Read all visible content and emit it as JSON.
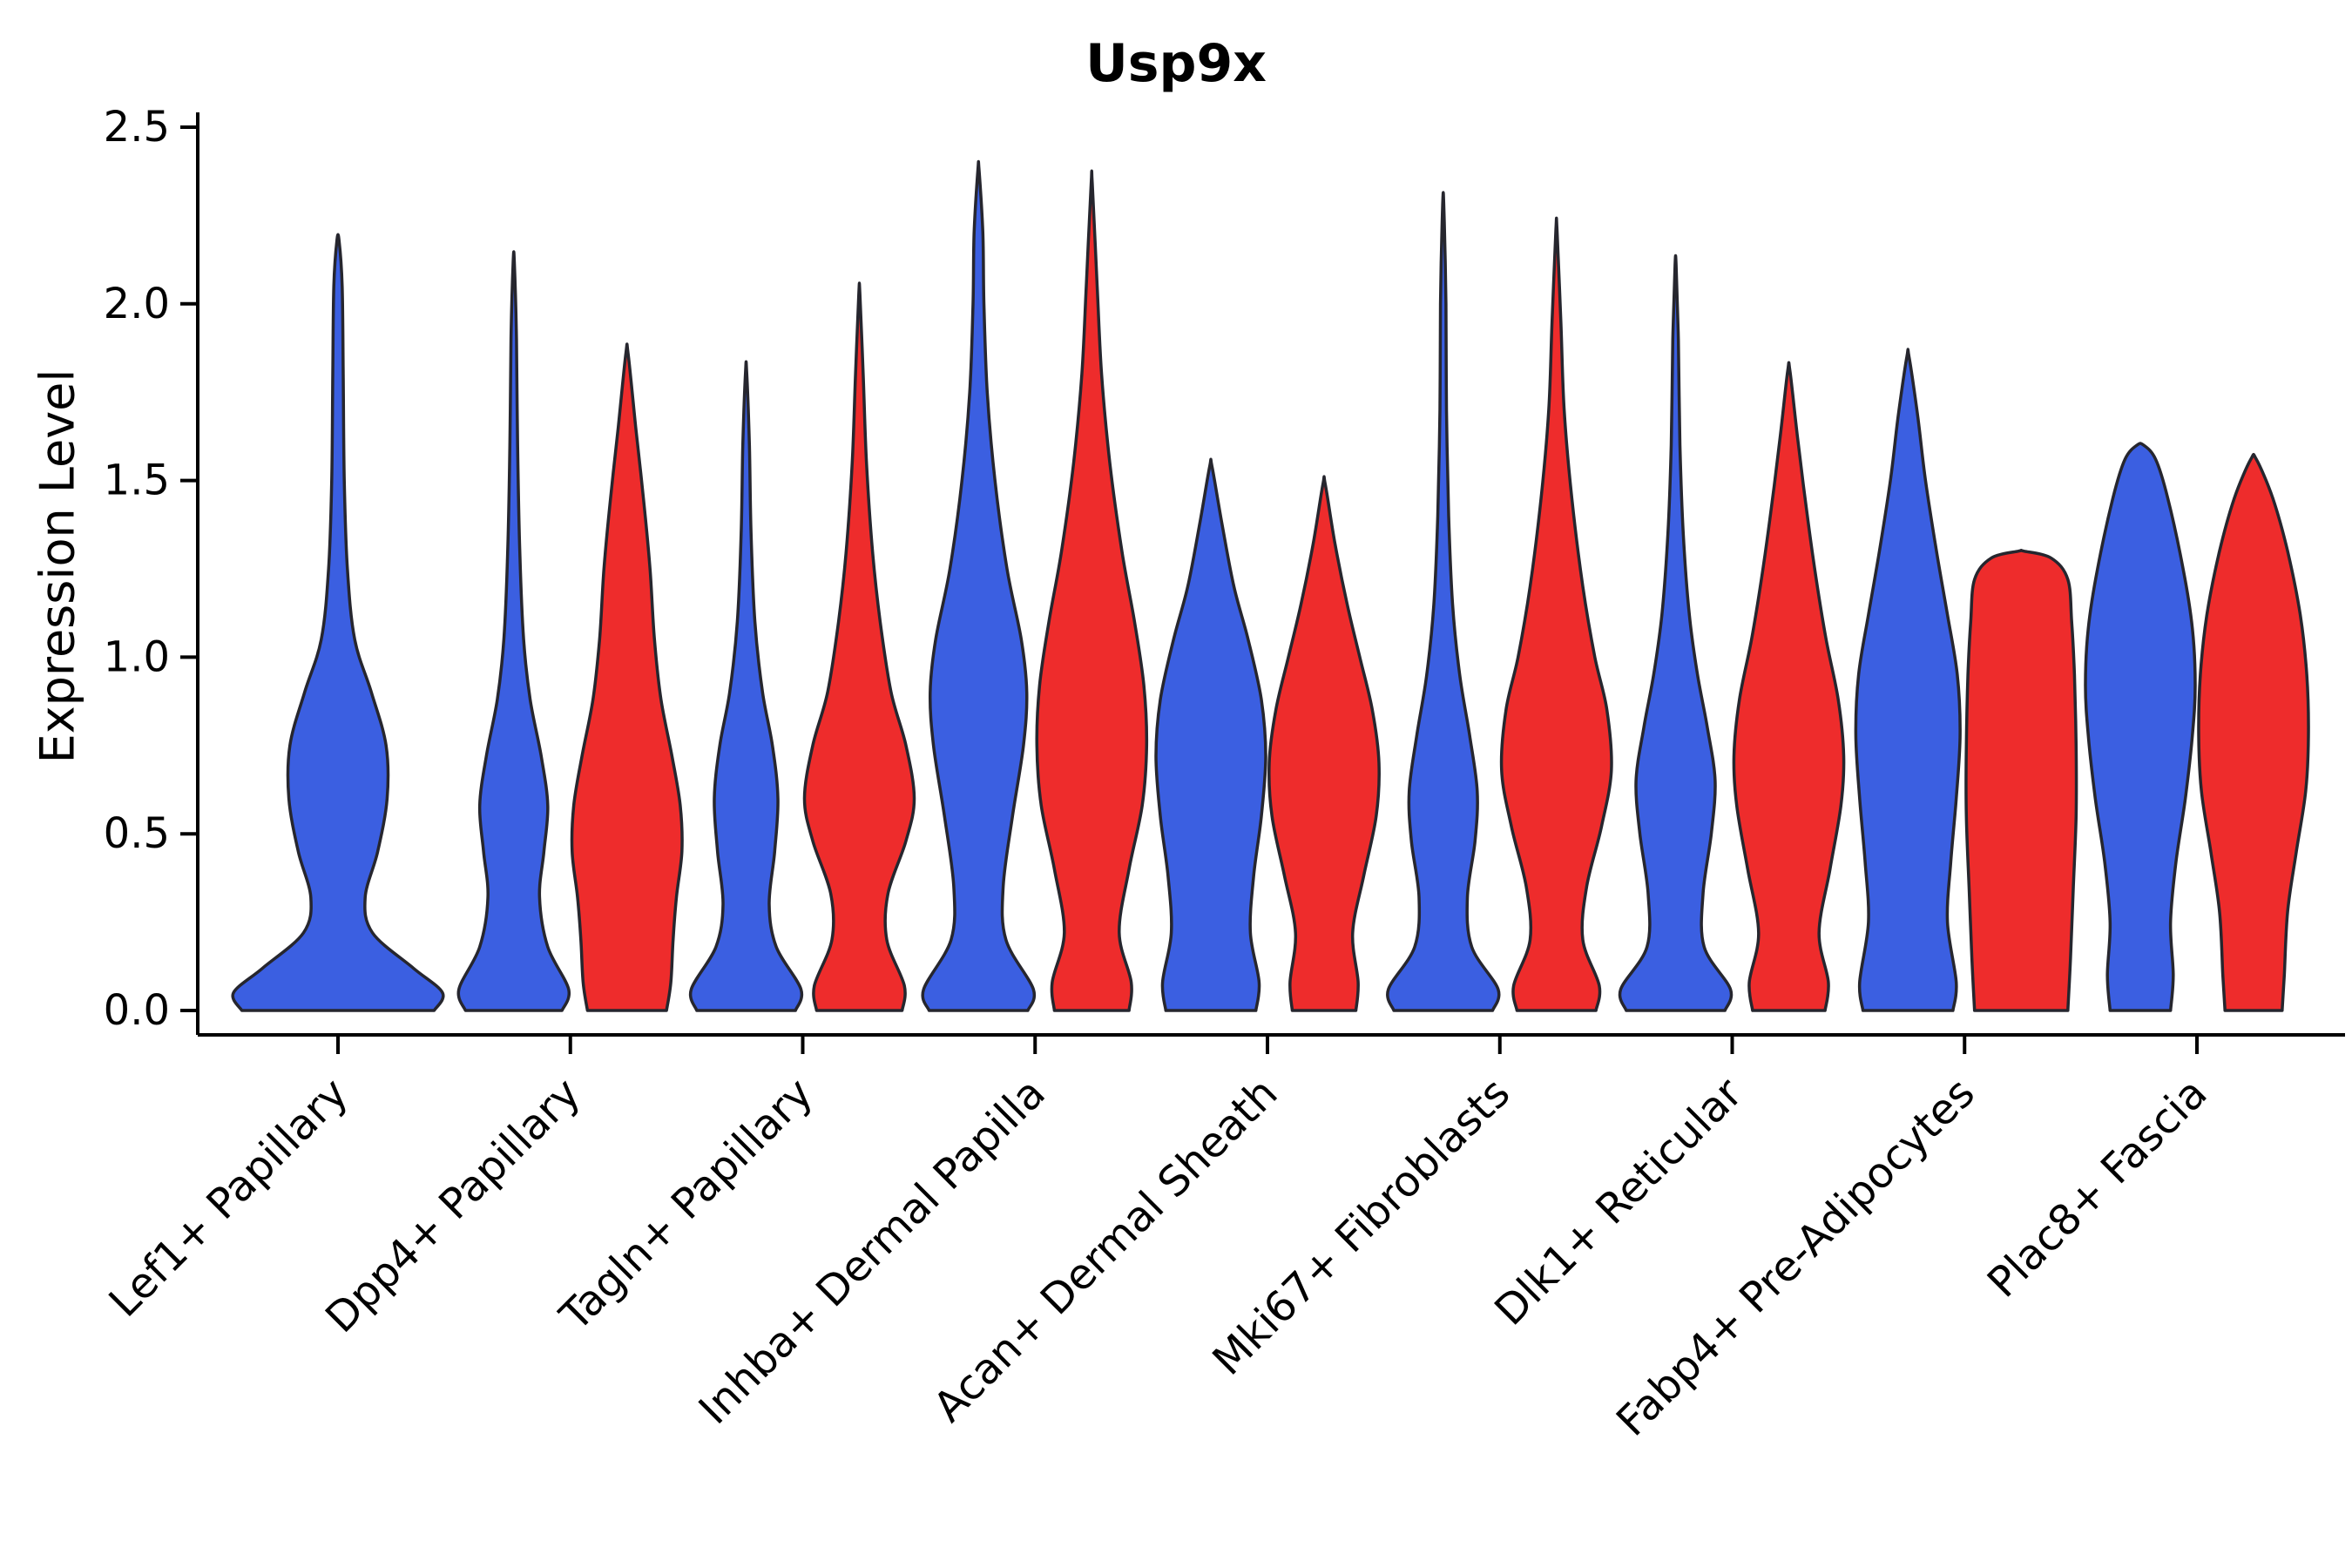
{
  "chart_data": {
    "type": "violin",
    "title": "Usp9x",
    "ylabel": "Expression Level",
    "xlabel": "",
    "ylim": [
      0,
      2.5
    ],
    "yticks": [
      0.0,
      0.5,
      1.0,
      1.5,
      2.0,
      2.5
    ],
    "ytick_labels": [
      "0.0",
      "0.5",
      "1.0",
      "1.5",
      "2.0",
      "2.5"
    ],
    "grid": false,
    "legend": "none",
    "colors": {
      "blue": "#3B5FE1",
      "red": "#EE2C2C",
      "edge": "#26262E",
      "axis": "#000000"
    },
    "categories": [
      "Lef1+ Papillary",
      "Dpp4+ Papillary",
      "Tagln+ Papillary",
      "Inhba+ Dermal Papilla",
      "Acan+ Dermal Sheath",
      "Mki67+ Fibroblasts",
      "Dlk1+ Reticular",
      "Fabp4+ Pre-Adipocytes",
      "Plac8+ Fascia"
    ],
    "violins": [
      {
        "category": "Lef1+ Papillary",
        "parts": [
          {
            "group": "blue",
            "max": 2.18,
            "profile": [
              [
                0,
                0.92
              ],
              [
                0.05,
                1.0
              ],
              [
                0.12,
                0.72
              ],
              [
                0.22,
                0.33
              ],
              [
                0.32,
                0.26
              ],
              [
                0.45,
                0.38
              ],
              [
                0.6,
                0.47
              ],
              [
                0.75,
                0.46
              ],
              [
                0.9,
                0.32
              ],
              [
                1.05,
                0.16
              ],
              [
                1.25,
                0.09
              ],
              [
                1.5,
                0.06
              ],
              [
                1.8,
                0.05
              ],
              [
                2.05,
                0.04
              ],
              [
                2.18,
                0.01
              ]
            ]
          }
        ]
      },
      {
        "category": "Dpp4+ Papillary",
        "parts": [
          {
            "group": "blue",
            "max": 2.12,
            "profile": [
              [
                0,
                0.88
              ],
              [
                0.06,
                1.0
              ],
              [
                0.18,
                0.62
              ],
              [
                0.32,
                0.47
              ],
              [
                0.45,
                0.55
              ],
              [
                0.58,
                0.62
              ],
              [
                0.72,
                0.5
              ],
              [
                0.88,
                0.3
              ],
              [
                1.05,
                0.18
              ],
              [
                1.3,
                0.11
              ],
              [
                1.6,
                0.07
              ],
              [
                1.9,
                0.05
              ],
              [
                2.12,
                0.01
              ]
            ]
          },
          {
            "group": "red",
            "max": 1.86,
            "profile": [
              [
                0,
                0.72
              ],
              [
                0.08,
                0.8
              ],
              [
                0.2,
                0.84
              ],
              [
                0.32,
                0.9
              ],
              [
                0.45,
                1.0
              ],
              [
                0.58,
                0.97
              ],
              [
                0.72,
                0.82
              ],
              [
                0.88,
                0.62
              ],
              [
                1.05,
                0.5
              ],
              [
                1.25,
                0.42
              ],
              [
                1.45,
                0.3
              ],
              [
                1.65,
                0.16
              ],
              [
                1.86,
                0.02
              ]
            ]
          }
        ]
      },
      {
        "category": "Tagln+ Papillary",
        "parts": [
          {
            "group": "blue",
            "max": 1.81,
            "profile": [
              [
                0,
                0.9
              ],
              [
                0.06,
                1.0
              ],
              [
                0.18,
                0.55
              ],
              [
                0.3,
                0.42
              ],
              [
                0.45,
                0.52
              ],
              [
                0.6,
                0.58
              ],
              [
                0.75,
                0.48
              ],
              [
                0.9,
                0.3
              ],
              [
                1.1,
                0.16
              ],
              [
                1.35,
                0.09
              ],
              [
                1.6,
                0.06
              ],
              [
                1.81,
                0.01
              ]
            ]
          },
          {
            "group": "red",
            "max": 2.03,
            "profile": [
              [
                0,
                0.78
              ],
              [
                0.07,
                0.82
              ],
              [
                0.2,
                0.5
              ],
              [
                0.33,
                0.52
              ],
              [
                0.48,
                0.85
              ],
              [
                0.6,
                1.0
              ],
              [
                0.75,
                0.85
              ],
              [
                0.9,
                0.58
              ],
              [
                1.1,
                0.38
              ],
              [
                1.3,
                0.24
              ],
              [
                1.55,
                0.13
              ],
              [
                1.8,
                0.07
              ],
              [
                2.03,
                0.01
              ]
            ]
          }
        ]
      },
      {
        "category": "Inhba+ Dermal Papilla",
        "parts": [
          {
            "group": "blue",
            "max": 2.38,
            "profile": [
              [
                0,
                0.9
              ],
              [
                0.06,
                1.0
              ],
              [
                0.2,
                0.5
              ],
              [
                0.35,
                0.45
              ],
              [
                0.55,
                0.62
              ],
              [
                0.75,
                0.82
              ],
              [
                0.9,
                0.88
              ],
              [
                1.05,
                0.78
              ],
              [
                1.25,
                0.52
              ],
              [
                1.5,
                0.3
              ],
              [
                1.75,
                0.16
              ],
              [
                2.0,
                0.1
              ],
              [
                2.2,
                0.08
              ],
              [
                2.38,
                0.01
              ]
            ]
          },
          {
            "group": "red",
            "max": 2.34,
            "profile": [
              [
                0,
                0.68
              ],
              [
                0.08,
                0.72
              ],
              [
                0.22,
                0.5
              ],
              [
                0.4,
                0.68
              ],
              [
                0.58,
                0.92
              ],
              [
                0.75,
                1.0
              ],
              [
                0.92,
                0.95
              ],
              [
                1.1,
                0.78
              ],
              [
                1.3,
                0.55
              ],
              [
                1.55,
                0.33
              ],
              [
                1.8,
                0.18
              ],
              [
                2.05,
                0.1
              ],
              [
                2.34,
                0.01
              ]
            ]
          }
        ]
      },
      {
        "category": "Acan+ Dermal Sheath",
        "parts": [
          {
            "group": "blue",
            "max": 1.54,
            "profile": [
              [
                0,
                0.82
              ],
              [
                0.08,
                0.88
              ],
              [
                0.22,
                0.72
              ],
              [
                0.38,
                0.78
              ],
              [
                0.55,
                0.92
              ],
              [
                0.72,
                1.0
              ],
              [
                0.88,
                0.92
              ],
              [
                1.05,
                0.68
              ],
              [
                1.2,
                0.42
              ],
              [
                1.38,
                0.2
              ],
              [
                1.54,
                0.02
              ]
            ]
          },
          {
            "group": "red",
            "max": 1.49,
            "profile": [
              [
                0,
                0.58
              ],
              [
                0.08,
                0.62
              ],
              [
                0.22,
                0.52
              ],
              [
                0.38,
                0.72
              ],
              [
                0.55,
                0.95
              ],
              [
                0.7,
                1.0
              ],
              [
                0.85,
                0.88
              ],
              [
                1.0,
                0.65
              ],
              [
                1.15,
                0.42
              ],
              [
                1.32,
                0.2
              ],
              [
                1.49,
                0.02
              ]
            ]
          }
        ]
      },
      {
        "category": "Mki67+ Fibroblasts",
        "parts": [
          {
            "group": "blue",
            "max": 2.28,
            "profile": [
              [
                0,
                0.9
              ],
              [
                0.06,
                1.0
              ],
              [
                0.18,
                0.52
              ],
              [
                0.32,
                0.44
              ],
              [
                0.48,
                0.58
              ],
              [
                0.62,
                0.62
              ],
              [
                0.78,
                0.48
              ],
              [
                0.95,
                0.3
              ],
              [
                1.15,
                0.17
              ],
              [
                1.4,
                0.1
              ],
              [
                1.7,
                0.06
              ],
              [
                2.0,
                0.05
              ],
              [
                2.28,
                0.01
              ]
            ]
          },
          {
            "group": "red",
            "max": 2.21,
            "profile": [
              [
                0,
                0.72
              ],
              [
                0.07,
                0.78
              ],
              [
                0.2,
                0.48
              ],
              [
                0.35,
                0.55
              ],
              [
                0.52,
                0.82
              ],
              [
                0.68,
                1.0
              ],
              [
                0.85,
                0.92
              ],
              [
                1.0,
                0.7
              ],
              [
                1.2,
                0.48
              ],
              [
                1.45,
                0.28
              ],
              [
                1.7,
                0.14
              ],
              [
                1.95,
                0.08
              ],
              [
                2.21,
                0.01
              ]
            ]
          }
        ]
      },
      {
        "category": "Dlk1+ Reticular",
        "parts": [
          {
            "group": "blue",
            "max": 2.11,
            "profile": [
              [
                0,
                0.9
              ],
              [
                0.06,
                1.0
              ],
              [
                0.18,
                0.52
              ],
              [
                0.33,
                0.5
              ],
              [
                0.5,
                0.65
              ],
              [
                0.65,
                0.72
              ],
              [
                0.8,
                0.58
              ],
              [
                0.95,
                0.4
              ],
              [
                1.12,
                0.25
              ],
              [
                1.35,
                0.14
              ],
              [
                1.6,
                0.08
              ],
              [
                1.9,
                0.05
              ],
              [
                2.11,
                0.01
              ]
            ]
          },
          {
            "group": "red",
            "max": 1.81,
            "profile": [
              [
                0,
                0.66
              ],
              [
                0.08,
                0.72
              ],
              [
                0.22,
                0.55
              ],
              [
                0.4,
                0.75
              ],
              [
                0.58,
                0.95
              ],
              [
                0.72,
                1.0
              ],
              [
                0.88,
                0.9
              ],
              [
                1.05,
                0.68
              ],
              [
                1.22,
                0.5
              ],
              [
                1.42,
                0.32
              ],
              [
                1.62,
                0.16
              ],
              [
                1.81,
                0.02
              ]
            ]
          }
        ]
      },
      {
        "category": "Fabp4+ Pre-Adipocytes",
        "parts": [
          {
            "group": "blue",
            "max": 1.85,
            "profile": [
              [
                0,
                0.82
              ],
              [
                0.08,
                0.88
              ],
              [
                0.25,
                0.72
              ],
              [
                0.42,
                0.78
              ],
              [
                0.6,
                0.88
              ],
              [
                0.78,
                0.95
              ],
              [
                0.95,
                0.9
              ],
              [
                1.12,
                0.72
              ],
              [
                1.3,
                0.52
              ],
              [
                1.5,
                0.32
              ],
              [
                1.68,
                0.18
              ],
              [
                1.85,
                0.02
              ]
            ]
          },
          {
            "group": "red",
            "max": 1.3,
            "profile": [
              [
                0,
                0.85
              ],
              [
                0.15,
                0.9
              ],
              [
                0.35,
                0.95
              ],
              [
                0.55,
                1.0
              ],
              [
                0.75,
                1.0
              ],
              [
                0.95,
                0.97
              ],
              [
                1.1,
                0.92
              ],
              [
                1.22,
                0.85
              ],
              [
                1.28,
                0.55
              ],
              [
                1.3,
                0.05
              ]
            ]
          }
        ]
      },
      {
        "category": "Plac8+ Fascia",
        "parts": [
          {
            "group": "blue",
            "max": 1.6,
            "profile": [
              [
                0,
                0.55
              ],
              [
                0.1,
                0.6
              ],
              [
                0.25,
                0.55
              ],
              [
                0.42,
                0.65
              ],
              [
                0.6,
                0.82
              ],
              [
                0.78,
                0.95
              ],
              [
                0.92,
                1.0
              ],
              [
                1.08,
                0.95
              ],
              [
                1.25,
                0.78
              ],
              [
                1.45,
                0.5
              ],
              [
                1.56,
                0.28
              ],
              [
                1.6,
                0.06
              ]
            ]
          },
          {
            "group": "red",
            "max": 1.56,
            "profile": [
              [
                0,
                0.52
              ],
              [
                0.1,
                0.56
              ],
              [
                0.28,
                0.62
              ],
              [
                0.45,
                0.78
              ],
              [
                0.62,
                0.95
              ],
              [
                0.78,
                1.0
              ],
              [
                0.95,
                0.97
              ],
              [
                1.12,
                0.85
              ],
              [
                1.3,
                0.62
              ],
              [
                1.45,
                0.35
              ],
              [
                1.56,
                0.05
              ]
            ]
          }
        ]
      }
    ]
  }
}
